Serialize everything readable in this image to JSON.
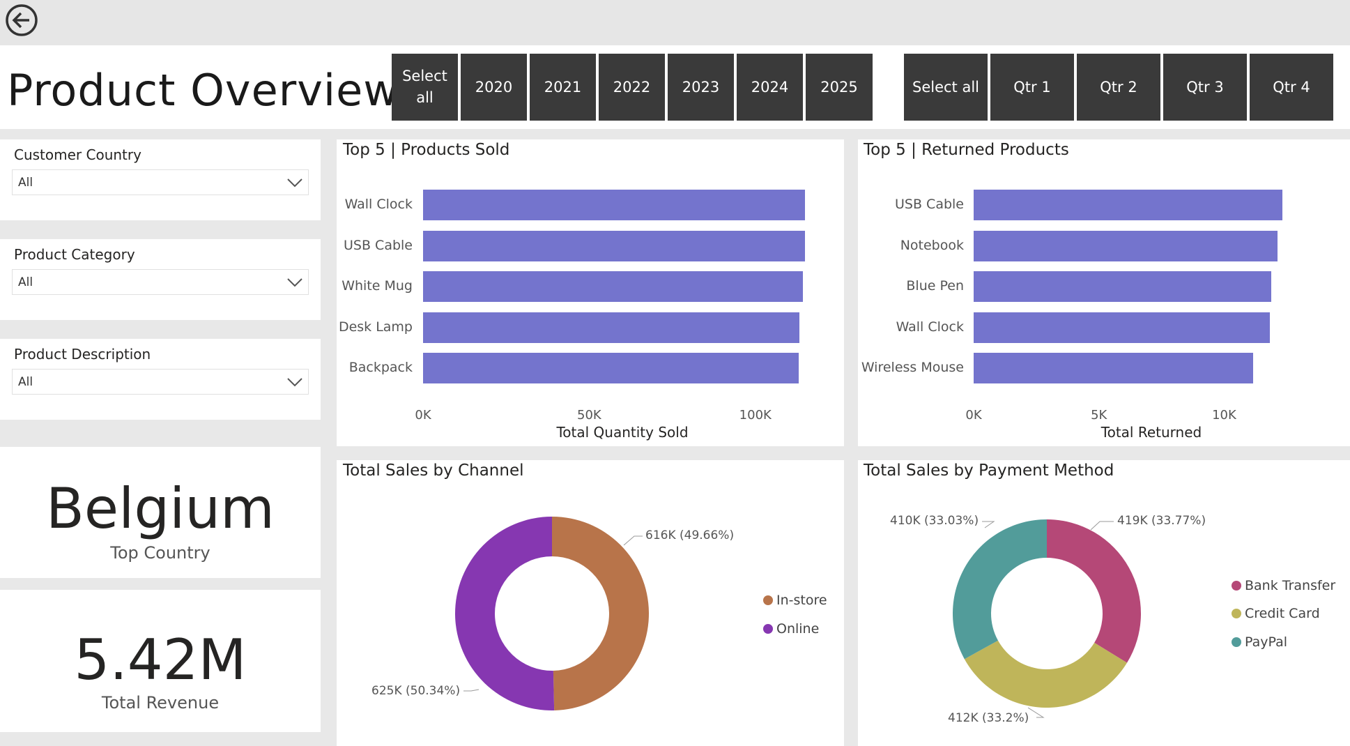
{
  "page_title": "Product Overview",
  "year_slicer": [
    {
      "line1": "Select",
      "line2": "all"
    },
    {
      "line1": "2020",
      "line2": ""
    },
    {
      "line1": "2021",
      "line2": ""
    },
    {
      "line1": "2022",
      "line2": ""
    },
    {
      "line1": "2023",
      "line2": ""
    },
    {
      "line1": "2024",
      "line2": ""
    },
    {
      "line1": "2025",
      "line2": ""
    }
  ],
  "quarter_slicer": [
    "Select all",
    "Qtr 1",
    "Qtr 2",
    "Qtr 3",
    "Qtr 4"
  ],
  "filters": [
    {
      "title": "Customer Country",
      "value": "All"
    },
    {
      "title": "Product Category",
      "value": "All"
    },
    {
      "title": "Product Description",
      "value": "All"
    }
  ],
  "cards": {
    "top_country": {
      "value": "Belgium",
      "label": "Top Country"
    },
    "total_revenue": {
      "value": "5.42M",
      "label": "Total Revenue"
    }
  },
  "colors": {
    "bar": "#7474cd",
    "in_store": "#b8744a",
    "online": "#8637b1",
    "bank_transfer": "#b54877",
    "credit_card": "#bfb55a",
    "paypal": "#529c9a",
    "slicer_bg": "#3a3a3a"
  },
  "icons": {
    "back": "back-arrow-icon",
    "dropdown": "chevron-down-icon"
  },
  "chart_data": [
    {
      "type": "bar",
      "orientation": "horizontal",
      "title": "Top 5 | Products Sold",
      "categories": [
        "Wall Clock",
        "USB Cable",
        "White Mug",
        "Desk Lamp",
        "Backpack"
      ],
      "values": [
        115000,
        114900,
        114300,
        113300,
        113100
      ],
      "xlabel": "Total Quantity Sold",
      "xlim": [
        0,
        115000
      ],
      "ticks": [
        "0K",
        "50K",
        "100K"
      ]
    },
    {
      "type": "bar",
      "orientation": "horizontal",
      "title": "Top 5 | Returned Products",
      "categories": [
        "USB Cable",
        "Notebook",
        "Blue Pen",
        "Wall Clock",
        "Wireless Mouse"
      ],
      "values": [
        12600,
        12400,
        12150,
        12100,
        11400
      ],
      "xlabel": "Total Returned",
      "xlim": [
        0,
        12600
      ],
      "ticks": [
        "0K",
        "5K",
        "10K"
      ]
    },
    {
      "type": "pie",
      "donut": true,
      "title": "Total Sales by Channel",
      "labels": [
        "In-store",
        "Online"
      ],
      "values": [
        616000,
        625000
      ],
      "data_labels": [
        "616K (49.66%)",
        "625K (50.34%)"
      ],
      "legend": "right"
    },
    {
      "type": "pie",
      "donut": true,
      "title": "Total Sales by Payment Method",
      "labels": [
        "Bank Transfer",
        "Credit Card",
        "PayPal"
      ],
      "values": [
        419000,
        412000,
        410000
      ],
      "data_labels": [
        "419K (33.77%)",
        "412K (33.2%)",
        "410K (33.03%)"
      ],
      "legend": "right"
    }
  ]
}
